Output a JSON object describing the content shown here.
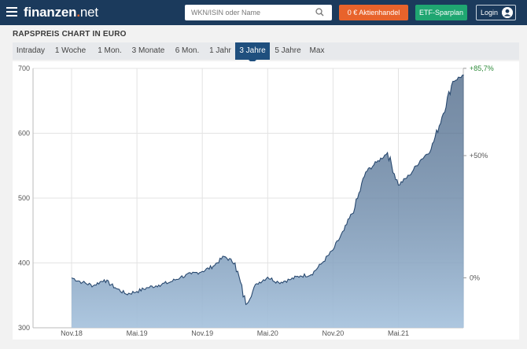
{
  "header": {
    "logo_main": "finanzen",
    "logo_dot": ".",
    "logo_net": "net",
    "search_placeholder": "WKN/ISIN oder Name",
    "btn_trade": "0 € Aktienhandel",
    "btn_etf": "ETF-Sparplan",
    "btn_login": "Login"
  },
  "icons": {
    "menu": "hamburger-icon",
    "search": "search-icon",
    "user": "user-icon"
  },
  "colors": {
    "header_bg": "#1b3a5c",
    "accent_orange": "#e8632b",
    "accent_green": "#1fa671",
    "tab_active": "#1f4f7e",
    "area_fill": "#a9c4de",
    "line": "#2a4a70"
  },
  "heading": "RAPSPREIS CHART IN EURO",
  "tabs": [
    "Intraday",
    "1 Woche",
    "1 Mon.",
    "3 Monate",
    "6 Mon.",
    "1 Jahr",
    "3 Jahre",
    "5 Jahre",
    "Max"
  ],
  "active_tab": "3 Jahre",
  "chart_data": {
    "type": "area",
    "title": "",
    "ylim": [
      300,
      700
    ],
    "yticks": [
      "300",
      "400",
      "500",
      "600",
      "700"
    ],
    "xticks": [
      "Nov.18",
      "Mai.19",
      "Nov.19",
      "Mai.20",
      "Nov.20",
      "Mai.21"
    ],
    "right_ticks": [
      "+85,7%",
      "+50%",
      "0%"
    ],
    "grid": true,
    "series": [
      {
        "x": [
          "2018-11",
          "2018-12",
          "2019-01",
          "2019-02",
          "2019-03",
          "2019-04",
          "2019-05",
          "2019-06",
          "2019-07",
          "2019-08",
          "2019-09",
          "2019-10",
          "2019-11",
          "2019-12",
          "2020-01",
          "2020-02",
          "2020-03",
          "2020-04",
          "2020-05",
          "2020-06",
          "2020-07",
          "2020-08",
          "2020-09",
          "2020-10",
          "2020-11",
          "2020-12",
          "2021-01",
          "2021-02",
          "2021-03",
          "2021-04",
          "2021-05",
          "2021-06",
          "2021-07",
          "2021-08",
          "2021-09",
          "2021-10",
          "2021-11"
        ],
        "y": [
          377,
          370,
          365,
          374,
          362,
          352,
          356,
          362,
          366,
          370,
          378,
          383,
          387,
          395,
          410,
          400,
          336,
          368,
          378,
          370,
          374,
          380,
          382,
          400,
          420,
          450,
          485,
          540,
          555,
          570,
          520,
          535,
          558,
          575,
          625,
          680,
          690
        ]
      }
    ]
  }
}
